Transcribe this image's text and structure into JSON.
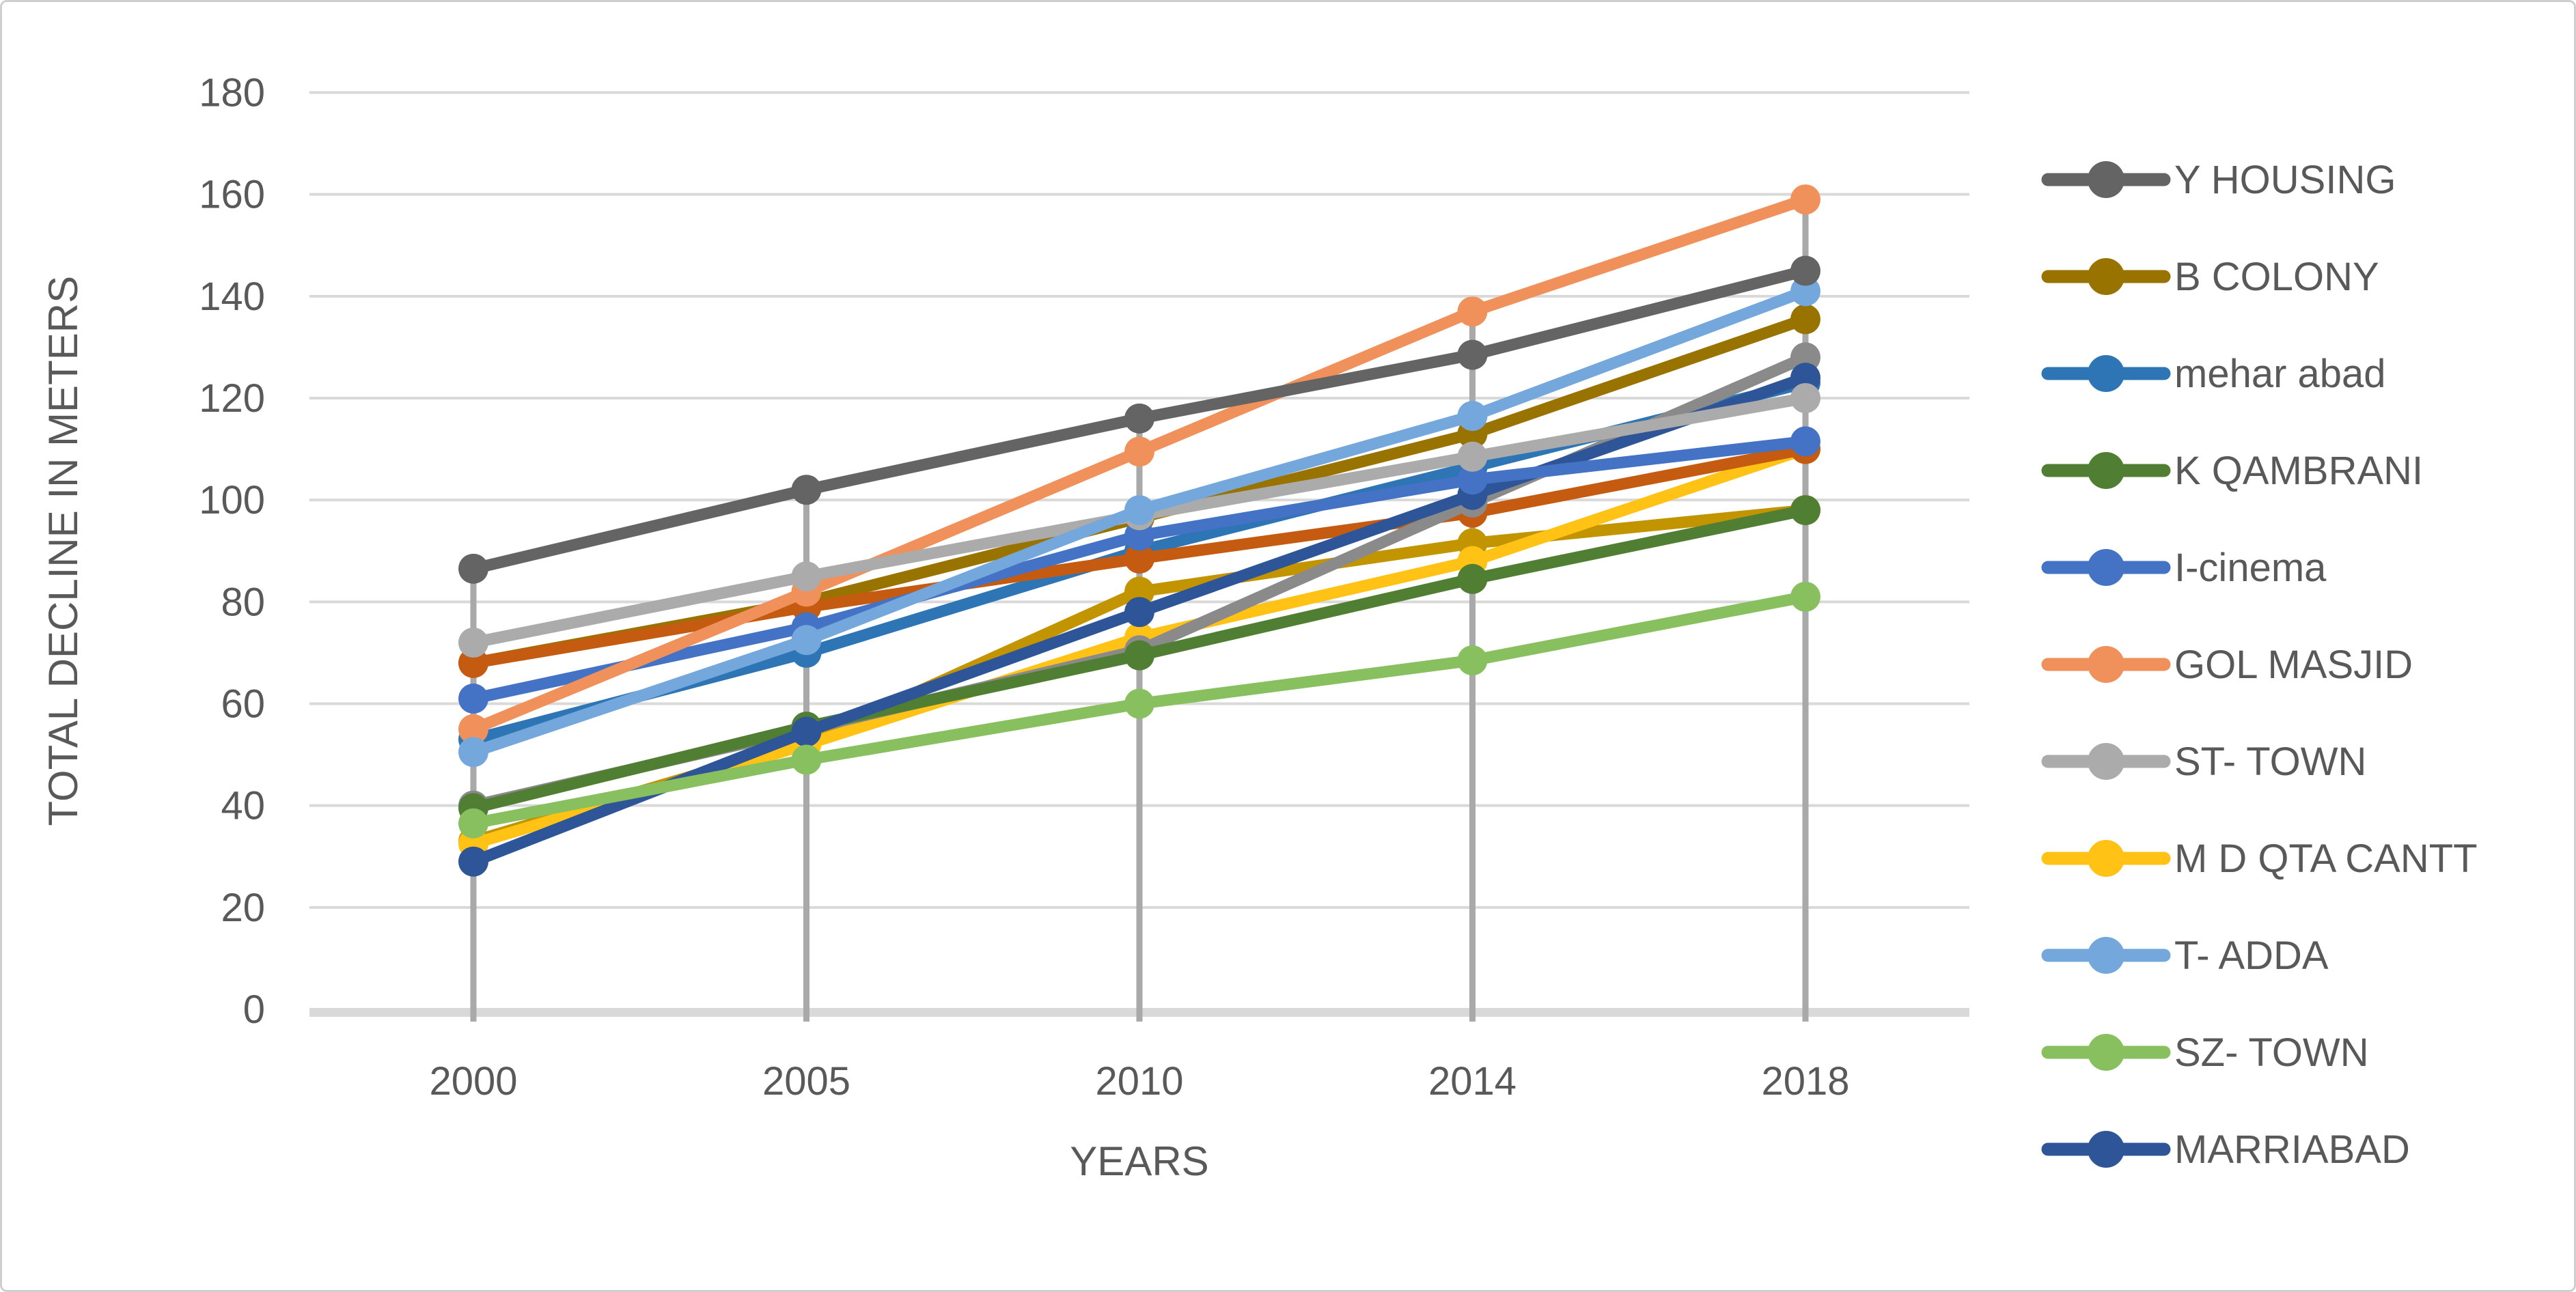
{
  "chart_data": {
    "type": "line",
    "title": "",
    "xlabel": "YEARS",
    "ylabel": "TOTAL DECLINE IN METERS",
    "categories": [
      "2000",
      "2005",
      "2010",
      "2014",
      "2018"
    ],
    "ylim": [
      0,
      180
    ],
    "ytick_step": 20,
    "y_tick_labels": [
      "0",
      "20",
      "40",
      "60",
      "80",
      "100",
      "120",
      "140",
      "160",
      "180"
    ],
    "grid": true,
    "legend_position": "right",
    "marker": "circle",
    "series": [
      {
        "slug": "y-housing",
        "name": "Y HOUSING",
        "color": "#646464",
        "in_legend": true,
        "values": [
          86.5,
          102,
          116,
          128.5,
          145
        ]
      },
      {
        "slug": "b-colony",
        "name": "B COLONY",
        "color": "#997300",
        "in_legend": true,
        "values": [
          68,
          80,
          96.5,
          113,
          135.5
        ]
      },
      {
        "slug": "mehar-abad",
        "name": "mehar abad",
        "color": "#2E75B6",
        "in_legend": true,
        "values": [
          53,
          70,
          90,
          106.5,
          123
        ]
      },
      {
        "slug": "k-qambrani",
        "name": "K QAMBRANI",
        "color": "#507E32",
        "in_legend": true,
        "values": [
          39.5,
          55.5,
          69.5,
          84.5,
          98
        ]
      },
      {
        "slug": "i-cinema",
        "name": "I-cinema",
        "color": "#4472C4",
        "in_legend": true,
        "values": [
          61,
          75,
          93,
          104,
          111.5
        ]
      },
      {
        "slug": "gol-masjid",
        "name": "GOL MASJID",
        "color": "#F0915B",
        "in_legend": true,
        "values": [
          55,
          82,
          109.5,
          137,
          159
        ]
      },
      {
        "slug": "st-town",
        "name": "ST- TOWN",
        "color": "#ABABAB",
        "in_legend": true,
        "values": [
          72,
          85,
          97,
          108.5,
          120
        ]
      },
      {
        "slug": "m-d-qta-cantt",
        "name": "M D QTA CANTT",
        "color": "#FFC215",
        "in_legend": true,
        "values": [
          32.5,
          52,
          73,
          88,
          110
        ]
      },
      {
        "slug": "t-adda",
        "name": "T- ADDA",
        "color": "#74A7DB",
        "in_legend": true,
        "values": [
          50.5,
          72.5,
          98,
          116.5,
          141
        ]
      },
      {
        "slug": "sz-town",
        "name": "SZ- TOWN",
        "color": "#88BF5F",
        "in_legend": true,
        "values": [
          36.5,
          49,
          60,
          68.5,
          81
        ]
      },
      {
        "slug": "marriabad",
        "name": "MARRIABAD",
        "color": "#2E5597",
        "in_legend": true,
        "values": [
          29,
          54.5,
          78,
          101,
          124
        ]
      },
      {
        "slug": "unlabeled-rust",
        "name": "",
        "color": "#C55A11",
        "in_legend": false,
        "values": [
          68,
          79,
          88.5,
          97.5,
          110
        ]
      },
      {
        "slug": "unlabeled-gold",
        "name": "",
        "color": "#C29500",
        "in_legend": false,
        "values": [
          33,
          52.5,
          82,
          91.5,
          98
        ]
      },
      {
        "slug": "unlabeled-gray",
        "name": "",
        "color": "#8A8A8A",
        "in_legend": false,
        "values": [
          40,
          55,
          70.5,
          99.5,
          128
        ]
      }
    ],
    "draw_order": [
      "unlabeled-gold",
      "b-colony",
      "mehar-abad",
      "m-d-qta-cantt",
      "unlabeled-rust",
      "unlabeled-gray",
      "k-qambrani",
      "marriabad",
      "i-cinema",
      "gol-masjid",
      "st-town",
      "t-adda",
      "sz-town",
      "y-housing"
    ],
    "legend_order": [
      "y-housing",
      "b-colony",
      "mehar-abad",
      "k-qambrani",
      "i-cinema",
      "gol-masjid",
      "st-town",
      "m-d-qta-cantt",
      "t-adda",
      "sz-town",
      "marriabad"
    ]
  },
  "style_colors": {
    "gridline": "#D9D9D9",
    "axis_line": "#D9D9D9",
    "drop_line": "#A9A9A9",
    "text": "#595959",
    "frame": "#CFCFCF"
  }
}
